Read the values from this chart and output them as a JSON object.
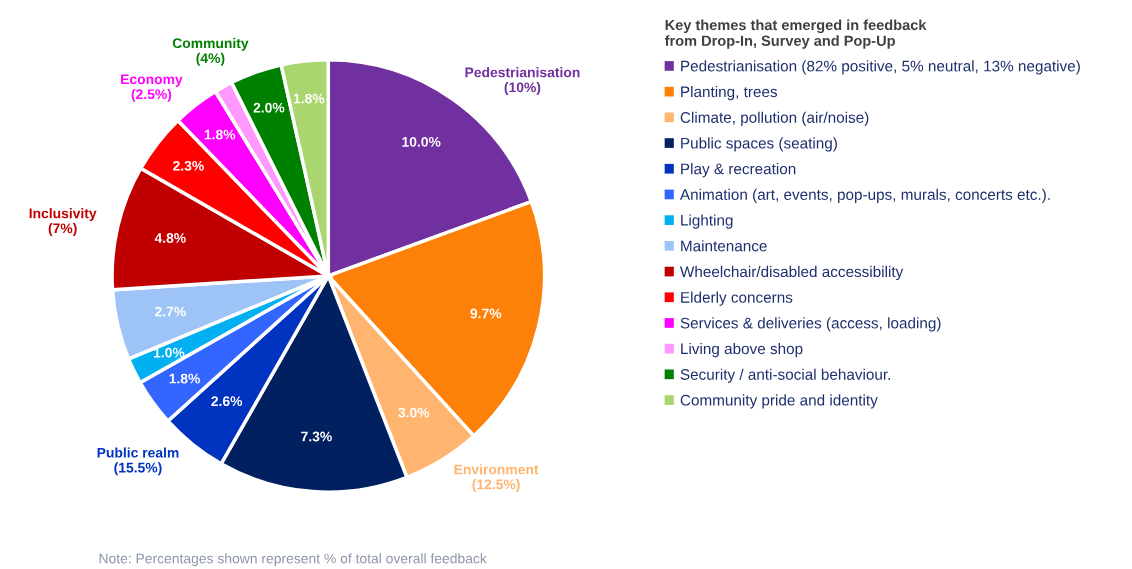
{
  "chart_data": {
    "type": "pie",
    "legend_title": "Key themes that emerged in feedback\nfrom Drop-In, Survey and Pop-Up",
    "legend": "right",
    "categories": [
      "Pedestrianisation (82% positive, 5% neutral, 13% negative)",
      "Planting, trees",
      "Climate, pollution (air/noise)",
      "Public spaces (seating)",
      "Play & recreation",
      "Animation (art, events, pop-ups, murals, concerts etc.).",
      "Lighting",
      "Maintenance",
      "Wheelchair/disabled accessibility",
      "Elderly concerns",
      "Services & deliveries (access, loading)",
      "Living above shop",
      "Security / anti-social behaviour.",
      "Community pride and identity"
    ],
    "values": [
      10.0,
      9.7,
      3.0,
      7.3,
      2.6,
      1.8,
      1.0,
      2.7,
      4.8,
      2.3,
      1.8,
      0.7,
      2.0,
      1.8
    ],
    "colors": [
      "#7030a0",
      "#fd8008",
      "#ffb570",
      "#002060",
      "#0033c0",
      "#3366ff",
      "#00b0f0",
      "#9dc3f7",
      "#c00000",
      "#ff0000",
      "#ff00ff",
      "#ff99ff",
      "#008000",
      "#a9d66f"
    ],
    "value_labels": [
      "10.0%",
      "9.7%",
      "3.0%",
      "7.3%",
      "2.6%",
      "1.8%",
      "1.0%",
      "2.7%",
      "4.8%",
      "2.3%",
      "1.8%",
      null,
      "2.0%",
      "1.8%"
    ],
    "annotations": [
      {
        "text": "Pedestrianisation\n(10%)",
        "x": "Pedestrianisation (82% positive, 5% neutral, 13% negative)"
      },
      {
        "text": "Environment\n(12.5%)",
        "x": "Climate, pollution (air/noise)"
      },
      {
        "text": "Public realm\n(15.5%)",
        "x": "Play & recreation"
      },
      {
        "text": "Inclusivity\n(7%)",
        "x": "Wheelchair/disabled accessibility"
      },
      {
        "text": "Economy\n(2.5%)",
        "x": "Services & deliveries (access, loading)"
      },
      {
        "text": "Community\n(4%)",
        "x": "Security / anti-social behaviour."
      },
      "Note: Percentages shown represent % of total overall feedback"
    ]
  }
}
